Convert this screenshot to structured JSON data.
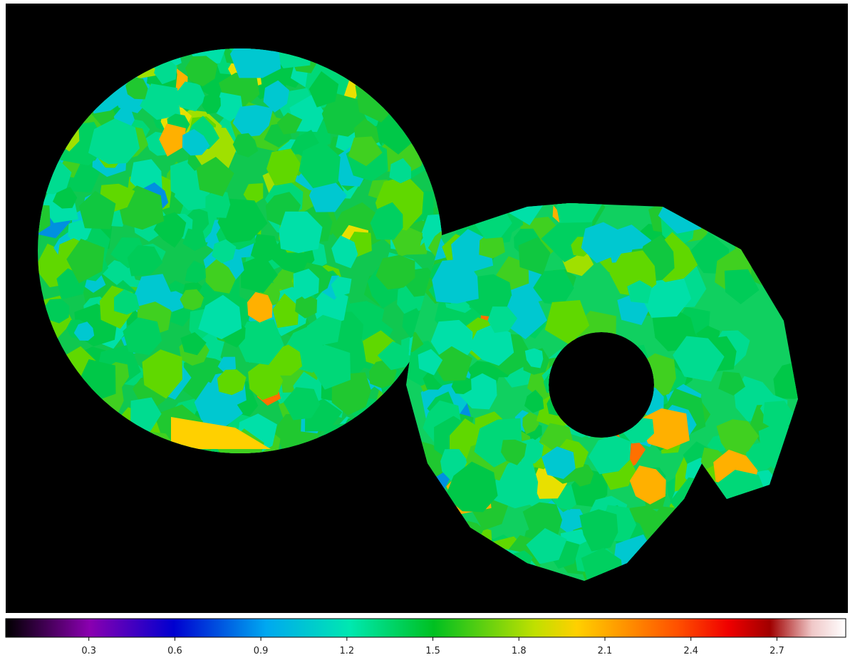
{
  "colorbar": {
    "lim": [
      0.01,
      2.94
    ],
    "ticks": [
      0.3,
      0.6,
      0.9,
      1.2,
      1.5,
      1.8,
      2.1,
      2.4,
      2.7
    ]
  }
}
